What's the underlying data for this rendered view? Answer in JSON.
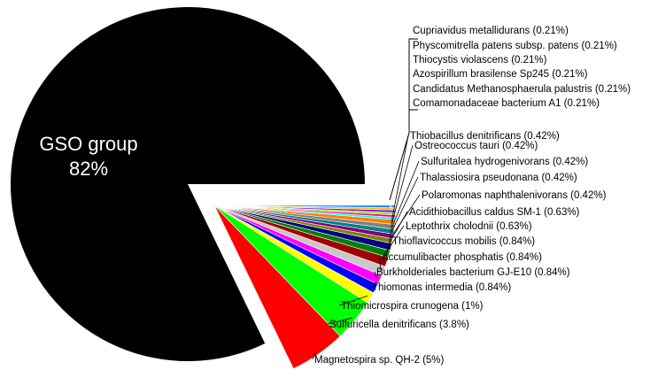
{
  "chart_data": {
    "type": "pie",
    "title": "",
    "main_slice": {
      "label": "GSO group",
      "percent_label": "82%",
      "value": 82,
      "color": "#000000"
    },
    "slices": [
      {
        "label": "Magnetospira sp. QH-2 (5%)",
        "value": 5,
        "color": "#ff0000"
      },
      {
        "label": "Sulfuricella denitrificans (3.8%)",
        "value": 3.8,
        "color": "#00ff00"
      },
      {
        "label": "Thiomicrospira crunogena (1%)",
        "value": 1,
        "color": "#ffff00"
      },
      {
        "label": "Thiomonas intermedia (0.84%)",
        "value": 0.84,
        "color": "#0000ff"
      },
      {
        "label": "Burkholderiales bacterium GJ-E10 (0.84%)",
        "value": 0.84,
        "color": "#ff00ff"
      },
      {
        "label": "Accumulibacter phosphatis (0.84%)",
        "value": 0.84,
        "color": "#c8c8c8"
      },
      {
        "label": "Thioflavicoccus mobilis (0.84%)",
        "value": 0.84,
        "color": "#a00000"
      },
      {
        "label": "Leptothrix cholodnii (0.63%)",
        "value": 0.63,
        "color": "#008000"
      },
      {
        "label": "Acidithiobacillus caldus SM-1 (0.63%)",
        "value": 0.63,
        "color": "#000080"
      },
      {
        "label": "Polaromonas naphthalenivorans (0.42%)",
        "value": 0.42,
        "color": "#808000"
      },
      {
        "label": "Thalassiosira pseudonana (0.42%)",
        "value": 0.42,
        "color": "#800080"
      },
      {
        "label": "Sulfuritalea hydrogenivorans (0.42%)",
        "value": 0.42,
        "color": "#008080"
      },
      {
        "label": "Ostreococcus tauri (0.42%)",
        "value": 0.42,
        "color": "#808080"
      },
      {
        "label": "Thiobacillus denitrificans (0.42%)",
        "value": 0.42,
        "color": "#ff8000"
      },
      {
        "label": "Comamonadaceae bacterium A1 (0.21%)",
        "value": 0.21,
        "color": "#00ffff"
      },
      {
        "label": "Candidatus Methanosphaerula palustris (0.21%)",
        "value": 0.21,
        "color": "#ff0080"
      },
      {
        "label": "Azospirillum brasilense Sp245 (0.21%)",
        "value": 0.21,
        "color": "#80ff00"
      },
      {
        "label": "Thiocystis violascens (0.21%)",
        "value": 0.21,
        "color": "#8000ff"
      },
      {
        "label": "Physcomitrella patens subsp. patens (0.21%)",
        "value": 0.21,
        "color": "#ffc000"
      },
      {
        "label": "Cupriavidus metallidurans (0.21%)",
        "value": 0.21,
        "color": "#0080ff"
      }
    ]
  }
}
